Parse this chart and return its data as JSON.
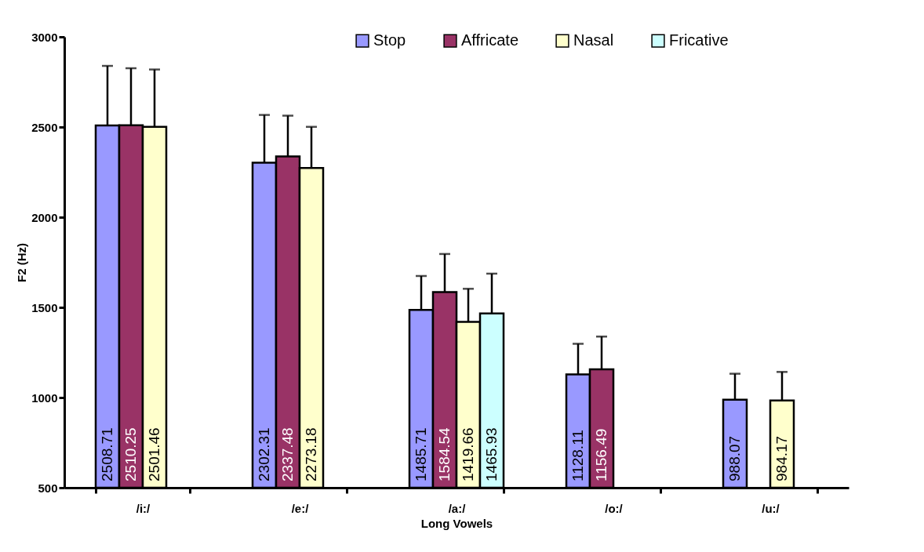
{
  "chart_data": {
    "type": "bar",
    "xlabel": "Long Vowels",
    "ylabel": "F2 (Hz)",
    "categories": [
      "/i:/",
      "/e:/",
      "/a:/",
      "/o:/",
      "/u:/"
    ],
    "series": [
      {
        "name": "Stop",
        "color": "#9999ff",
        "values": [
          2508.71,
          2302.31,
          1485.71,
          1128.11,
          988.07
        ],
        "errors": [
          [
            2508.71,
            2839
          ],
          [
            2302.31,
            2567
          ],
          [
            1485.71,
            1674
          ],
          [
            1128.11,
            1298
          ],
          [
            988.07,
            1132
          ]
        ]
      },
      {
        "name": "Affricate",
        "color": "#993366",
        "values": [
          2510.25,
          2337.48,
          1584.54,
          1156.49,
          null
        ],
        "errors": [
          [
            2510.25,
            2826
          ],
          [
            2337.48,
            2563
          ],
          [
            1584.54,
            1796
          ],
          [
            1156.49,
            1338
          ],
          null
        ]
      },
      {
        "name": "Nasal",
        "color": "#ffffcc",
        "values": [
          2501.46,
          2273.18,
          1419.66,
          null,
          984.17
        ],
        "errors": [
          [
            2501.46,
            2819
          ],
          [
            2273.18,
            2501
          ],
          [
            1419.66,
            1603
          ],
          null,
          [
            984.17,
            1142
          ]
        ]
      },
      {
        "name": "Fricative",
        "color": "#ccffff",
        "values": [
          null,
          null,
          1465.93,
          null,
          null
        ],
        "errors": [
          null,
          null,
          [
            1465.93,
            1687
          ],
          null,
          null
        ]
      }
    ],
    "ylim": [
      500,
      3000
    ],
    "yticks": [
      500,
      1000,
      1500,
      2000,
      2500,
      3000
    ],
    "data_labels": true,
    "legend": "top right",
    "grid": false
  }
}
